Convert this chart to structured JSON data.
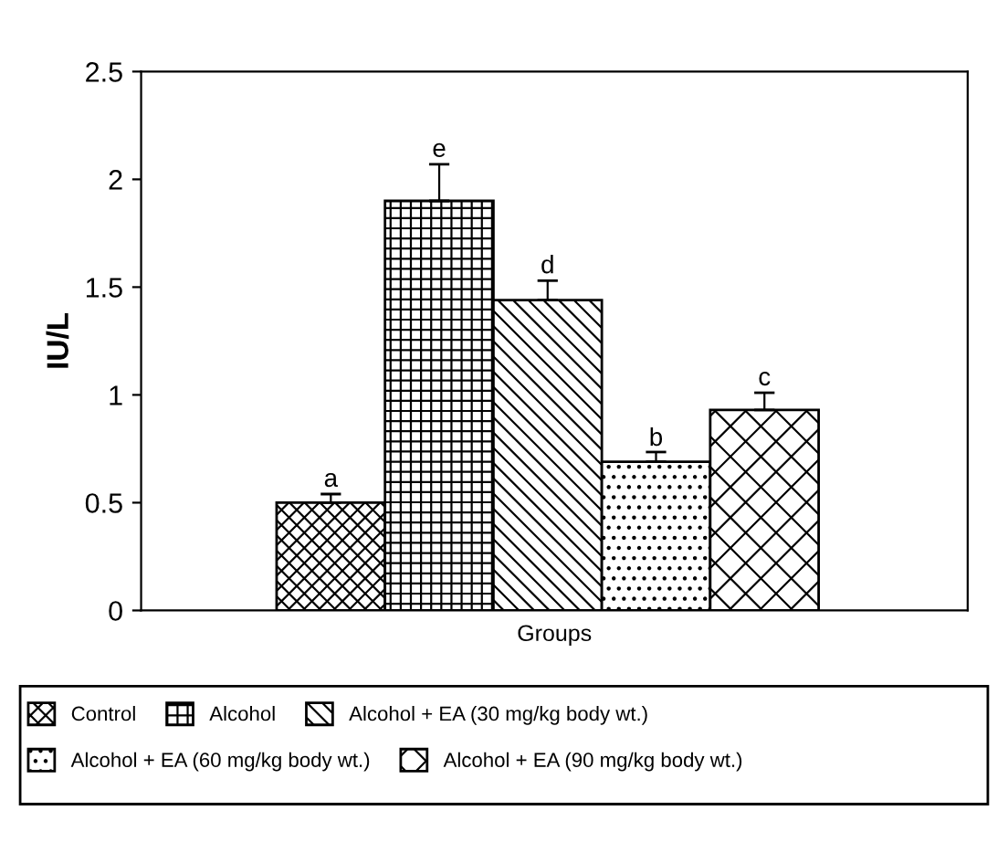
{
  "chart_data": {
    "type": "bar",
    "xlabel": "Groups",
    "ylabel": "IU/L",
    "categories": [
      null
    ],
    "series": [
      {
        "name": "Control",
        "color": "#000000",
        "values": [
          0.5
        ],
        "errors": [
          0.04
        ]
      },
      {
        "name": "Alcohol",
        "color": "#000000",
        "values": [
          1.9
        ],
        "errors": [
          0.17
        ]
      },
      {
        "name": "Alcohol + EA (30 mg/kg body wt.)",
        "color": "#000000",
        "values": [
          1.44
        ],
        "errors": [
          0.09
        ]
      },
      {
        "name": "Alcohol + EA (60 mg/kg body wt.)",
        "color": "#000000",
        "values": [
          0.69
        ],
        "errors": [
          0.045
        ]
      },
      {
        "name": "Alcohol + EA (90 mg/kg body wt.)",
        "color": "#000000",
        "values": [
          0.93
        ],
        "errors": [
          0.08
        ]
      }
    ],
    "annotations": [
      {
        "text": "a",
        "y": 0.55
      },
      {
        "text": "e",
        "y": 2.08
      },
      {
        "text": "d",
        "y": 1.54
      },
      {
        "text": "b",
        "y": 0.74
      },
      {
        "text": "c",
        "y": 1.02
      }
    ],
    "ylim": [
      0,
      2.5
    ],
    "yticks": [
      0,
      0.5,
      1,
      1.5,
      2,
      2.5
    ],
    "grid": false,
    "legend": "bottom"
  }
}
